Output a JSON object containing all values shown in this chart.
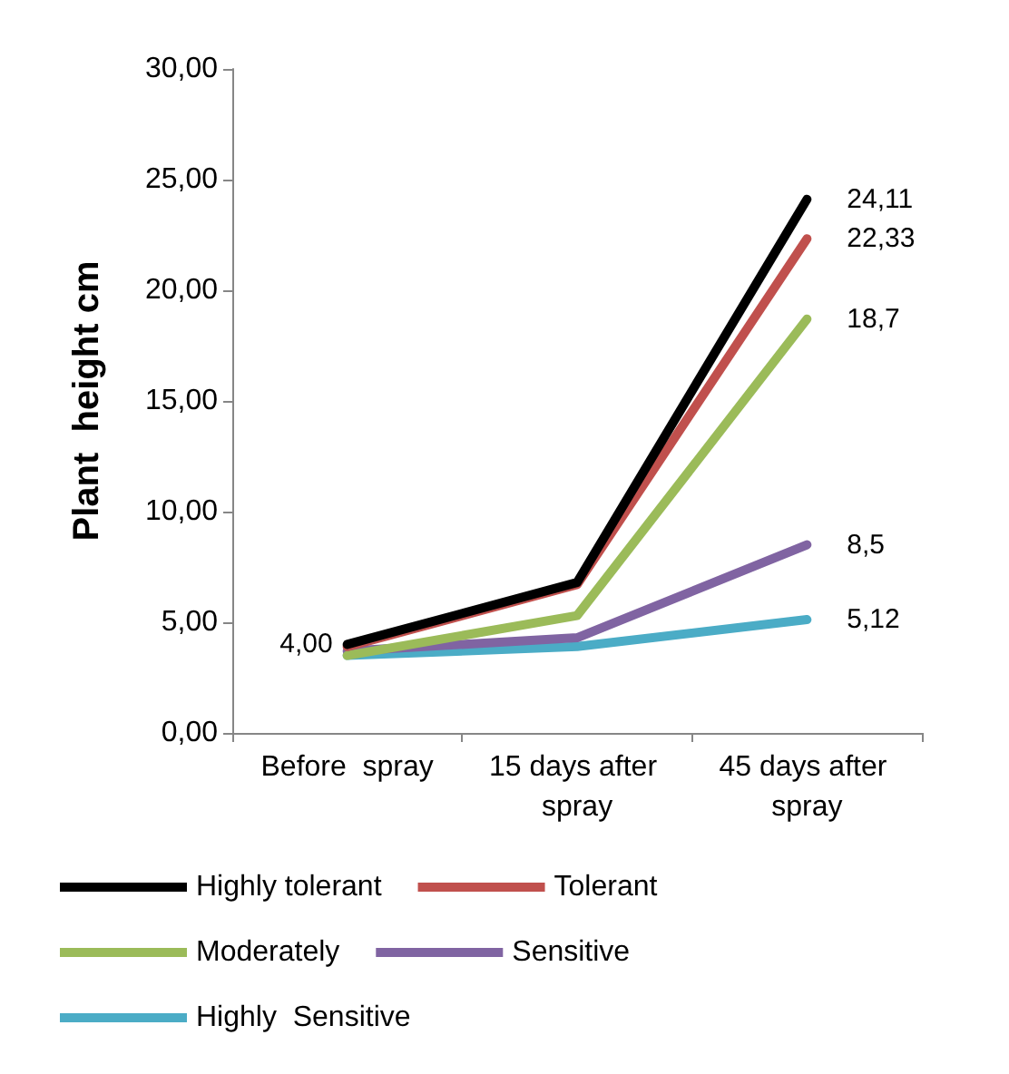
{
  "chart_data": {
    "type": "line",
    "ylabel": "Plant  height cm",
    "categories": [
      "Before  spray",
      "15 days after spray",
      "45 days after spray"
    ],
    "series": [
      {
        "name": "Highly tolerant",
        "color": "#000000",
        "values": [
          4.0,
          6.8,
          24.11
        ],
        "value_labels": [
          "4,00",
          null,
          "24,11"
        ]
      },
      {
        "name": "Tolerant",
        "color": "#c0504d",
        "values": [
          3.9,
          6.7,
          22.33
        ],
        "value_labels": [
          null,
          null,
          "22,33"
        ]
      },
      {
        "name": "Moderately",
        "color": "#9bbb59",
        "values": [
          3.5,
          5.3,
          18.7
        ],
        "value_labels": [
          null,
          null,
          "18,7"
        ]
      },
      {
        "name": "Sensitive",
        "color": "#8064a2",
        "values": [
          3.7,
          4.3,
          8.5
        ],
        "value_labels": [
          null,
          null,
          "8,5"
        ]
      },
      {
        "name": "Highly  Sensitive",
        "color": "#4bacc6",
        "values": [
          3.5,
          3.9,
          5.12
        ],
        "value_labels": [
          null,
          null,
          "5,12"
        ]
      }
    ],
    "ylim": [
      0,
      30
    ],
    "yticks": [
      {
        "value": 0,
        "label": "0,00"
      },
      {
        "value": 5,
        "label": "5,00"
      },
      {
        "value": 10,
        "label": "10,00"
      },
      {
        "value": 15,
        "label": "15,00"
      },
      {
        "value": 20,
        "label": "20,00"
      },
      {
        "value": 25,
        "label": "25,00"
      },
      {
        "value": 30,
        "label": "30,00"
      }
    ],
    "grid": false,
    "legend": "bottom",
    "marker": "none",
    "line_style": "solid"
  }
}
